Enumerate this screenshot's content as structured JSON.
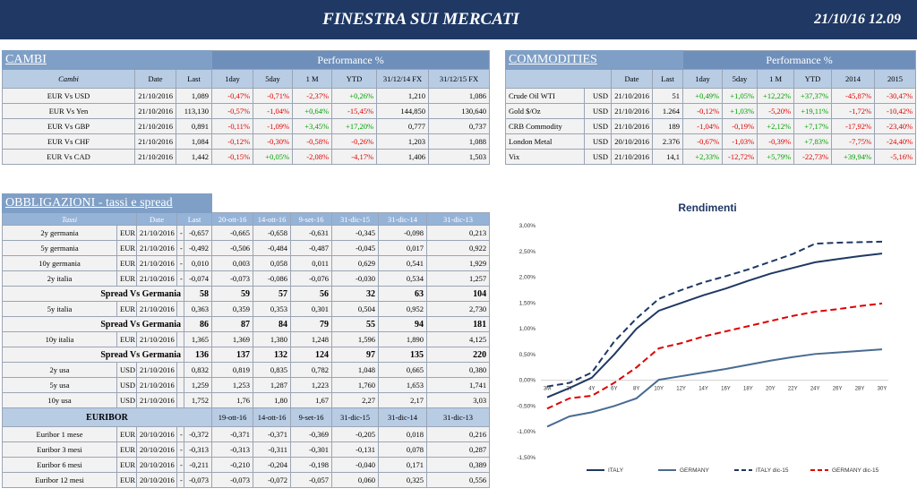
{
  "header": {
    "title": "FINESTRA SUI MERCATI",
    "datetime": "21/10/16 12.09"
  },
  "cambi": {
    "title": "CAMBI",
    "group": "Performance  %",
    "columns": [
      "Cambi",
      "Date",
      "Last",
      "1day",
      "5day",
      "1 M",
      "YTD",
      "31/12/14 FX",
      "31/12/15  FX"
    ],
    "rows": [
      [
        "EUR Vs USD",
        "21/10/2016",
        "1,089",
        "-0,47%",
        "-0,71%",
        "-2,37%",
        "+0,26%",
        "1,210",
        "1,086"
      ],
      [
        "EUR Vs Yen",
        "21/10/2016",
        "113,130",
        "-0,57%",
        "-1,04%",
        "+0,64%",
        "-15,45%",
        "144,850",
        "130,640"
      ],
      [
        "EUR Vs GBP",
        "21/10/2016",
        "0,891",
        "-0,11%",
        "-1,09%",
        "+3,45%",
        "+17,20%",
        "0,777",
        "0,737"
      ],
      [
        "EUR Vs CHF",
        "21/10/2016",
        "1,084",
        "-0,12%",
        "-0,30%",
        "-0,58%",
        "-0,26%",
        "1,203",
        "1,088"
      ],
      [
        "EUR Vs CAD",
        "21/10/2016",
        "1,442",
        "-0,15%",
        "+0,05%",
        "-2,08%",
        "-4,17%",
        "1,406",
        "1,503"
      ]
    ]
  },
  "commodities": {
    "title": "COMMODITIES",
    "group": "Performance  %",
    "columns": [
      "Date",
      "Last",
      "1day",
      "5day",
      "1 M",
      "YTD",
      "2014",
      "2015"
    ],
    "rows": [
      [
        "Crude Oil WTI",
        "USD",
        "21/10/2016",
        "51",
        "+0,49%",
        "+1,05%",
        "+12,22%",
        "+37,37%",
        "-45,87%",
        "-30,47%"
      ],
      [
        "Gold $/Oz",
        "USD",
        "21/10/2016",
        "1.264",
        "-0,12%",
        "+1,03%",
        "-5,20%",
        "+19,11%",
        "-1,72%",
        "-10,42%"
      ],
      [
        "CRB Commodity",
        "USD",
        "21/10/2016",
        "189",
        "-1,04%",
        "-0,19%",
        "+2,12%",
        "+7,17%",
        "-17,92%",
        "-23,40%"
      ],
      [
        "London Metal",
        "USD",
        "20/10/2016",
        "2.376",
        "-0,67%",
        "-1,03%",
        "-0,39%",
        "+7,83%",
        "-7,75%",
        "-24,40%"
      ],
      [
        "Vix",
        "USD",
        "21/10/2016",
        "14,1",
        "+2,33%",
        "-12,72%",
        "+5,79%",
        "-22,73%",
        "+39,94%",
        "-5,16%"
      ]
    ]
  },
  "obbligazioni": {
    "title": "OBBLIGAZIONI - tassi e spread",
    "columns": [
      "Tassi",
      "Date",
      "Last",
      "20-ott-16",
      "14-ott-16",
      "9-set-16",
      "31-dic-15",
      "31-dic-14",
      "31-dic-13"
    ],
    "rows": [
      [
        "2y germania",
        "EUR",
        "21/10/2016",
        "-",
        "-0,657",
        "-0,665",
        "-0,658",
        "-0,631",
        "-0,345",
        "-0,098",
        "0,213"
      ],
      [
        "5y germania",
        "EUR",
        "21/10/2016",
        "-",
        "-0,492",
        "-0,506",
        "-0,484",
        "-0,487",
        "-0,045",
        "0,017",
        "0,922"
      ],
      [
        "10y germania",
        "EUR",
        "21/10/2016",
        "-",
        "0,010",
        "0,003",
        "0,058",
        "0,011",
        "0,629",
        "0,541",
        "1,929"
      ],
      [
        "2y italia",
        "EUR",
        "21/10/2016",
        "-",
        "-0,074",
        "-0,073",
        "-0,086",
        "-0,076",
        "-0,030",
        "0,534",
        "1,257"
      ],
      [
        "Spread Vs Germania",
        "58",
        "59",
        "57",
        "56",
        "32",
        "63",
        "104"
      ],
      [
        "5y italia",
        "EUR",
        "21/10/2016",
        "0,363",
        "0,359",
        "0,353",
        "0,301",
        "0,504",
        "0,952",
        "2,730"
      ],
      [
        "Spread Vs Germania",
        "86",
        "87",
        "84",
        "79",
        "55",
        "94",
        "181"
      ],
      [
        "10y italia",
        "EUR",
        "21/10/2016",
        "1,365",
        "1,369",
        "1,380",
        "1,248",
        "1,596",
        "1,890",
        "4,125"
      ],
      [
        "Spread Vs Germania",
        "136",
        "137",
        "132",
        "124",
        "97",
        "135",
        "220"
      ],
      [
        "2y usa",
        "USD",
        "21/10/2016",
        "0,832",
        "0,819",
        "0,835",
        "0,782",
        "1,048",
        "0,665",
        "0,380"
      ],
      [
        "5y usa",
        "USD",
        "21/10/2016",
        "1,259",
        "1,253",
        "1,287",
        "1,223",
        "1,760",
        "1,653",
        "1,741"
      ],
      [
        "10y usa",
        "USD",
        "21/10/2016",
        "1,752",
        "1,76",
        "1,80",
        "1,67",
        "2,27",
        "2,17",
        "3,03"
      ]
    ],
    "euribor": {
      "title": "EURIBOR",
      "columns": [
        "19-ott-16",
        "14-ott-16",
        "9-set-16",
        "31-dic-15",
        "31-dic-14",
        "31-dic-13"
      ],
      "rows": [
        [
          "Euribor 1 mese",
          "EUR",
          "20/10/2016",
          "-",
          "-0,372",
          "-0,371",
          "-0,371",
          "-0,369",
          "-0,205",
          "0,018",
          "0,216"
        ],
        [
          "Euribor 3 mesi",
          "EUR",
          "20/10/2016",
          "-",
          "-0,313",
          "-0,313",
          "-0,311",
          "-0,301",
          "-0,131",
          "0,078",
          "0,287"
        ],
        [
          "Euribor 6 mesi",
          "EUR",
          "20/10/2016",
          "-",
          "-0,211",
          "-0,210",
          "-0,204",
          "-0,198",
          "-0,040",
          "0,171",
          "0,389"
        ],
        [
          "Euribor 12 mesi",
          "EUR",
          "20/10/2016",
          "-",
          "-0,073",
          "-0,073",
          "-0,072",
          "-0,057",
          "0,060",
          "0,325",
          "0,556"
        ]
      ]
    }
  },
  "chart_data": {
    "type": "line",
    "title": "Rendimenti",
    "categories": [
      "3M",
      "2Y",
      "4Y",
      "6Y",
      "8Y",
      "10Y",
      "12Y",
      "14Y",
      "16Y",
      "18Y",
      "20Y",
      "22Y",
      "24Y",
      "26Y",
      "28Y",
      "30Y"
    ],
    "ylim": [
      -1.5,
      3
    ],
    "yticks": [
      {
        "value": 3,
        "label": "3,00%"
      },
      {
        "value": 2.5,
        "label": "2,50%"
      },
      {
        "value": 2,
        "label": "2,00%"
      },
      {
        "value": 1.5,
        "label": "1,50%"
      },
      {
        "value": 1,
        "label": "1,00%"
      },
      {
        "value": 0.5,
        "label": "0,50%"
      },
      {
        "value": 0,
        "label": "0,00%"
      },
      {
        "value": -0.5,
        "label": "-0,50%"
      },
      {
        "value": -1,
        "label": "-1,00%"
      },
      {
        "value": -1.5,
        "label": "-1,50%"
      }
    ],
    "series": [
      {
        "name": "ITALY",
        "color": "#1f3864",
        "dashed": false,
        "values": [
          -0.33,
          -0.15,
          0.05,
          0.5,
          1.0,
          1.35,
          1.5,
          1.65,
          1.78,
          1.93,
          2.07,
          2.18,
          2.29,
          2.35,
          2.41,
          2.46
        ]
      },
      {
        "name": "GERMANY",
        "color": "#4a6b92",
        "dashed": false,
        "values": [
          -0.9,
          -0.7,
          -0.62,
          -0.5,
          -0.35,
          0.01,
          0.08,
          0.15,
          0.22,
          0.3,
          0.38,
          0.45,
          0.51,
          0.54,
          0.57,
          0.6
        ]
      },
      {
        "name": "ITALY dic-15",
        "color": "#1f3864",
        "dashed": true,
        "values": [
          -0.12,
          -0.05,
          0.15,
          0.75,
          1.2,
          1.58,
          1.75,
          1.9,
          2.02,
          2.15,
          2.3,
          2.45,
          2.65,
          2.67,
          2.68,
          2.69
        ]
      },
      {
        "name": "GERMANY dic-15",
        "color": "#e00000",
        "dashed": true,
        "values": [
          -0.55,
          -0.35,
          -0.3,
          -0.05,
          0.25,
          0.62,
          0.72,
          0.85,
          0.95,
          1.05,
          1.15,
          1.25,
          1.33,
          1.38,
          1.44,
          1.49
        ]
      }
    ]
  }
}
